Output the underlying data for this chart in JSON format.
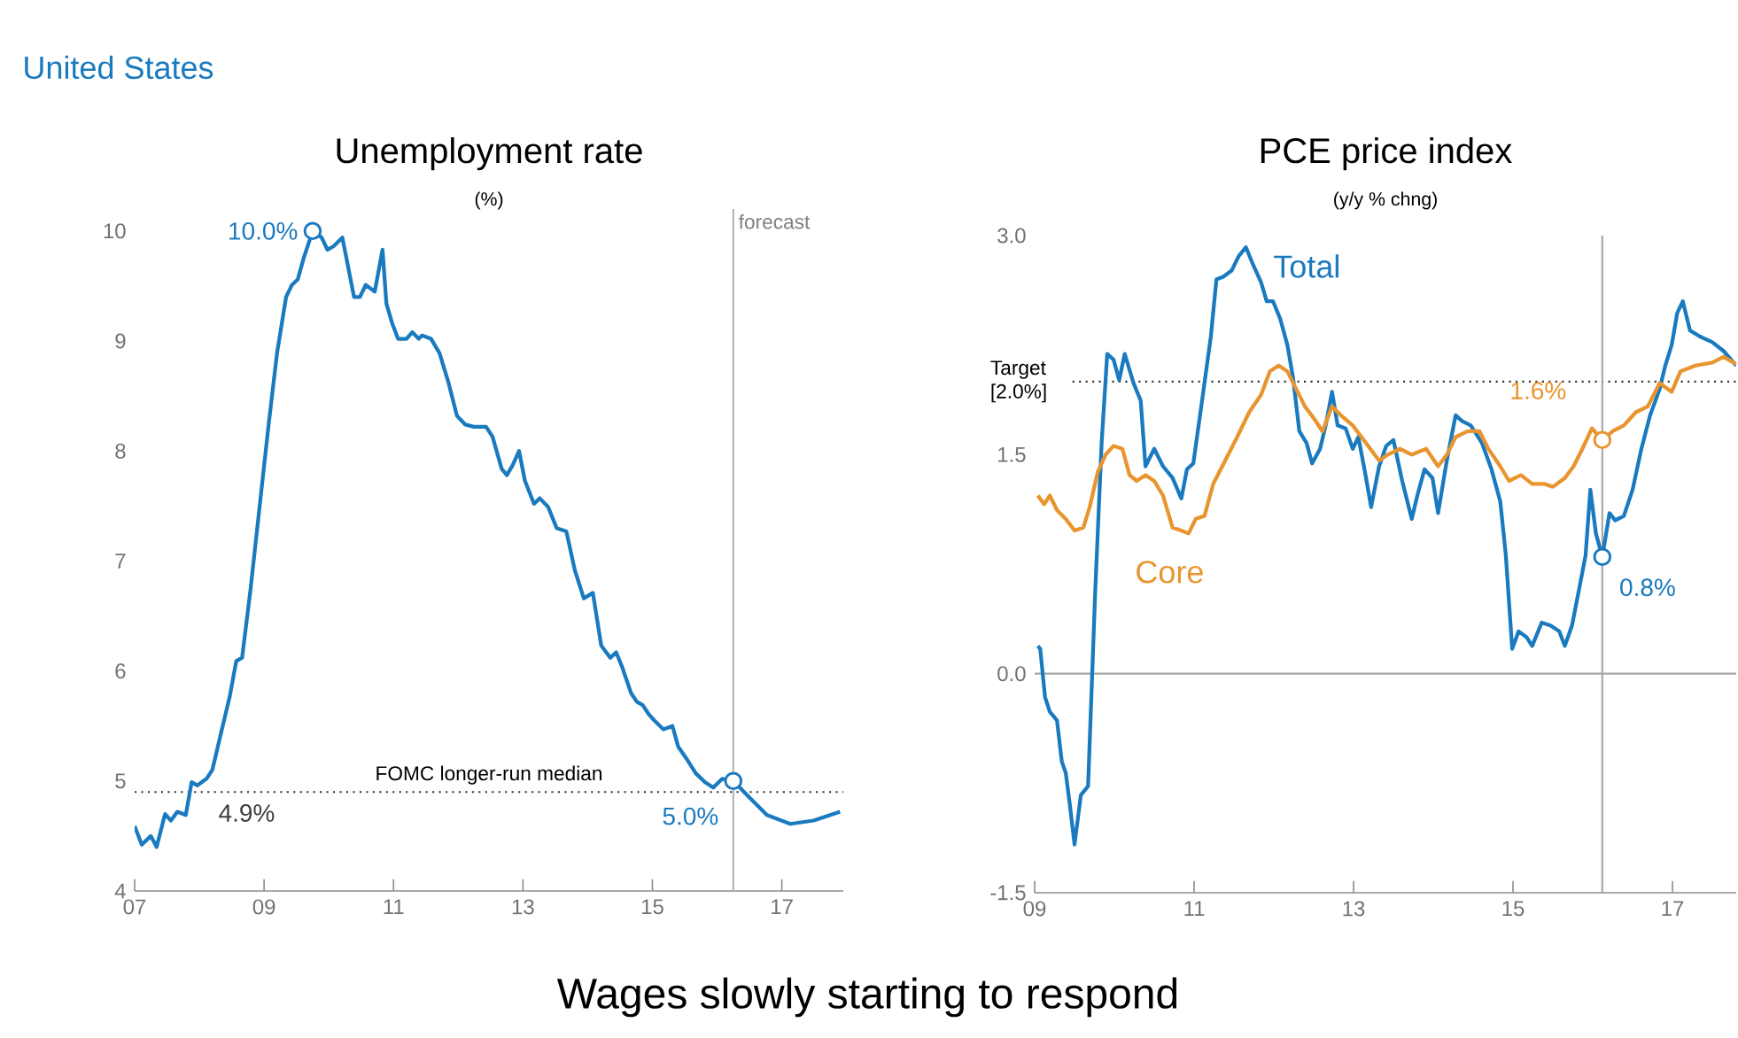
{
  "chart_data": [
    {
      "type": "line",
      "title": "Unemployment rate",
      "subtitle": "(%)",
      "annotations": [
        "United States",
        {
          "text": "10.0%",
          "x": 2009.75,
          "y": 10.0
        },
        {
          "text": "4.9%",
          "x": 2008.25,
          "y": 4.9
        },
        {
          "text": "5.0%",
          "x": 2016.25,
          "y": 5.0
        }
      ],
      "xlim": [
        2007,
        2017.95
      ],
      "xticks": [
        {
          "value": 2007,
          "label": "07"
        },
        {
          "value": 2009,
          "label": "09"
        },
        {
          "value": 2011,
          "label": "11"
        },
        {
          "value": 2013,
          "label": "13"
        },
        {
          "value": 2015,
          "label": "15"
        },
        {
          "value": 2017,
          "label": "17"
        }
      ],
      "ylim": [
        4,
        10.2
      ],
      "yticks": [
        4,
        5,
        6,
        7,
        8,
        9,
        10
      ],
      "ref_lines": [
        {
          "axis": "x",
          "value": 2016.25,
          "label": "forecast",
          "color": "#b3b3b3",
          "line_style": "solid"
        },
        {
          "axis": "y",
          "value": 4.9,
          "label": "FOMC longer-run median",
          "color": "#333333",
          "line_style": "dotted"
        }
      ],
      "series": [
        {
          "color": "#1a7abf",
          "x": [
            2007.0,
            2007.11,
            2007.25,
            2007.34,
            2007.47,
            2007.56,
            2007.66,
            2007.79,
            2007.88,
            2007.97,
            2008.11,
            2008.2,
            2008.34,
            2008.47,
            2008.57,
            2008.66,
            2008.79,
            2008.93,
            2009.07,
            2009.2,
            2009.34,
            2009.43,
            2009.52,
            2009.61,
            2009.75,
            2009.89,
            2009.98,
            2010.07,
            2010.21,
            2010.3,
            2010.39,
            2010.48,
            2010.57,
            2010.71,
            2010.83,
            2010.89,
            2010.98,
            2011.07,
            2011.2,
            2011.29,
            2011.39,
            2011.44,
            2011.58,
            2011.71,
            2011.85,
            2011.98,
            2012.11,
            2012.24,
            2012.43,
            2012.53,
            2012.67,
            2012.75,
            2012.84,
            2012.94,
            2013.03,
            2013.17,
            2013.26,
            2013.39,
            2013.52,
            2013.67,
            2013.8,
            2013.94,
            2014.08,
            2014.21,
            2014.35,
            2014.44,
            2014.53,
            2014.67,
            2014.76,
            2014.85,
            2014.94,
            2015.03,
            2015.17,
            2015.31,
            2015.4,
            2015.53,
            2015.67,
            2015.81,
            2015.94,
            2016.08,
            2016.25,
            2016.5,
            2016.77,
            2017.13,
            2017.49,
            2017.9
          ],
          "values": [
            4.59,
            4.42,
            4.5,
            4.4,
            4.7,
            4.64,
            4.72,
            4.69,
            4.99,
            4.96,
            5.02,
            5.1,
            5.45,
            5.77,
            6.09,
            6.12,
            6.74,
            7.49,
            8.24,
            8.89,
            9.4,
            9.51,
            9.56,
            9.75,
            10.0,
            9.94,
            9.83,
            9.86,
            9.94,
            9.67,
            9.4,
            9.4,
            9.51,
            9.45,
            9.83,
            9.34,
            9.16,
            9.02,
            9.02,
            9.08,
            9.02,
            9.05,
            9.02,
            8.89,
            8.62,
            8.32,
            8.24,
            8.22,
            8.22,
            8.13,
            7.84,
            7.78,
            7.87,
            8.0,
            7.73,
            7.52,
            7.57,
            7.49,
            7.3,
            7.27,
            6.92,
            6.66,
            6.71,
            6.23,
            6.12,
            6.17,
            6.04,
            5.8,
            5.72,
            5.69,
            5.61,
            5.55,
            5.47,
            5.5,
            5.31,
            5.2,
            5.07,
            4.99,
            4.94,
            5.02,
            5.0,
            4.85,
            4.69,
            4.61,
            4.64,
            4.72
          ]
        },
        {
          "type": "scatter",
          "marker": "circle",
          "color": "#1a7abf",
          "x": [
            2009.75,
            2016.25
          ],
          "values": [
            10.0,
            5.0
          ]
        }
      ]
    },
    {
      "type": "line",
      "title": "PCE price index",
      "subtitle": "(y/y % chng)",
      "annotations": [
        "Wages slowly starting to respond",
        {
          "text": "1.6%",
          "x": 2016.12,
          "y": 1.6
        },
        {
          "text": "0.8%",
          "x": 2016.12,
          "y": 0.8
        }
      ],
      "xlim": [
        2009,
        2017.8
      ],
      "xticks": [
        {
          "value": 2009,
          "label": "09"
        },
        {
          "value": 2011,
          "label": "11"
        },
        {
          "value": 2013,
          "label": "13"
        },
        {
          "value": 2015,
          "label": "15"
        },
        {
          "value": 2017,
          "label": "17"
        }
      ],
      "ylim": [
        -1.5,
        3.0
      ],
      "yticks": [
        {
          "value": -1.5,
          "label": "-1.5"
        },
        {
          "value": 0,
          "label": "0.0"
        },
        {
          "value": 1.5,
          "label": "1.5"
        },
        {
          "value": 3.0,
          "label": "3.0"
        }
      ],
      "ref_lines": [
        {
          "axis": "y",
          "value": 2.0,
          "label": "Target [2.0%]",
          "color": "#333333",
          "line_style": "dotted"
        },
        {
          "axis": "y",
          "value": 0,
          "color": "#a6a6a6",
          "line_style": "solid"
        },
        {
          "axis": "x",
          "value": 2016.12,
          "color": "#a6a6a6",
          "line_style": "solid"
        }
      ],
      "series": [
        {
          "name": "Total",
          "color": "#1a7abf",
          "x": [
            2009.04,
            2009.07,
            2009.13,
            2009.19,
            2009.28,
            2009.34,
            2009.39,
            2009.44,
            2009.5,
            2009.58,
            2009.67,
            2009.76,
            2009.84,
            2009.91,
            2009.99,
            2010.06,
            2010.13,
            2010.24,
            2010.33,
            2010.39,
            2010.5,
            2010.61,
            2010.73,
            2010.84,
            2010.91,
            2010.99,
            2011.1,
            2011.21,
            2011.28,
            2011.37,
            2011.47,
            2011.56,
            2011.65,
            2011.74,
            2011.84,
            2011.91,
            2011.99,
            2012.08,
            2012.17,
            2012.24,
            2012.32,
            2012.41,
            2012.48,
            2012.58,
            2012.65,
            2012.73,
            2012.8,
            2012.9,
            2012.99,
            2013.06,
            2013.15,
            2013.22,
            2013.32,
            2013.41,
            2013.5,
            2013.61,
            2013.73,
            2013.8,
            2013.89,
            2013.99,
            2014.06,
            2014.17,
            2014.28,
            2014.36,
            2014.47,
            2014.61,
            2014.73,
            2014.84,
            2014.91,
            2014.99,
            2015.07,
            2015.17,
            2015.24,
            2015.36,
            2015.47,
            2015.58,
            2015.65,
            2015.74,
            2015.84,
            2015.91,
            2015.97,
            2016.04,
            2016.12,
            2016.21,
            2016.28,
            2016.39,
            2016.5,
            2016.61,
            2016.72,
            2016.84,
            2016.91,
            2016.99,
            2017.06,
            2017.13,
            2017.22,
            2017.34,
            2017.5,
            2017.64,
            2017.8
          ],
          "values": [
            0.19,
            0.17,
            -0.16,
            -0.26,
            -0.32,
            -0.6,
            -0.68,
            -0.89,
            -1.17,
            -0.83,
            -0.77,
            0.57,
            1.58,
            2.19,
            2.15,
            2.01,
            2.19,
            1.99,
            1.87,
            1.42,
            1.54,
            1.42,
            1.34,
            1.2,
            1.4,
            1.44,
            1.87,
            2.31,
            2.7,
            2.72,
            2.76,
            2.86,
            2.92,
            2.8,
            2.68,
            2.55,
            2.55,
            2.43,
            2.25,
            2.03,
            1.66,
            1.58,
            1.44,
            1.54,
            1.7,
            1.93,
            1.7,
            1.68,
            1.54,
            1.62,
            1.36,
            1.14,
            1.42,
            1.56,
            1.6,
            1.32,
            1.06,
            1.22,
            1.4,
            1.34,
            1.1,
            1.46,
            1.77,
            1.73,
            1.7,
            1.58,
            1.4,
            1.18,
            0.81,
            0.17,
            0.29,
            0.25,
            0.19,
            0.35,
            0.33,
            0.29,
            0.19,
            0.33,
            0.61,
            0.81,
            1.26,
            0.96,
            0.8,
            1.1,
            1.05,
            1.08,
            1.26,
            1.54,
            1.77,
            1.95,
            2.11,
            2.25,
            2.47,
            2.55,
            2.35,
            2.31,
            2.27,
            2.21,
            2.11
          ]
        },
        {
          "name": "Core",
          "color": "#e8952f",
          "x": [
            2009.04,
            2009.12,
            2009.19,
            2009.28,
            2009.39,
            2009.5,
            2009.61,
            2009.69,
            2009.79,
            2009.89,
            2009.99,
            2010.1,
            2010.19,
            2010.28,
            2010.39,
            2010.5,
            2010.61,
            2010.73,
            2010.84,
            2010.93,
            2011.02,
            2011.13,
            2011.24,
            2011.39,
            2011.54,
            2011.69,
            2011.84,
            2011.95,
            2012.06,
            2012.17,
            2012.28,
            2012.39,
            2012.5,
            2012.61,
            2012.73,
            2012.84,
            2012.99,
            2013.1,
            2013.21,
            2013.32,
            2013.43,
            2013.58,
            2013.73,
            2013.91,
            2014.06,
            2014.17,
            2014.28,
            2014.43,
            2014.58,
            2014.69,
            2014.84,
            2014.95,
            2015.1,
            2015.24,
            2015.39,
            2015.5,
            2015.65,
            2015.76,
            2015.87,
            2015.99,
            2016.12,
            2016.25,
            2016.39,
            2016.54,
            2016.69,
            2016.84,
            2016.99,
            2017.1,
            2017.29,
            2017.5,
            2017.64,
            2017.8
          ],
          "values": [
            1.22,
            1.16,
            1.22,
            1.12,
            1.06,
            0.98,
            1.0,
            1.14,
            1.38,
            1.5,
            1.56,
            1.54,
            1.36,
            1.32,
            1.36,
            1.32,
            1.22,
            1.0,
            0.98,
            0.96,
            1.06,
            1.08,
            1.3,
            1.46,
            1.62,
            1.79,
            1.91,
            2.07,
            2.11,
            2.07,
            1.95,
            1.83,
            1.75,
            1.66,
            1.83,
            1.77,
            1.7,
            1.62,
            1.54,
            1.46,
            1.5,
            1.54,
            1.5,
            1.54,
            1.42,
            1.5,
            1.62,
            1.66,
            1.66,
            1.54,
            1.42,
            1.32,
            1.36,
            1.3,
            1.3,
            1.28,
            1.34,
            1.42,
            1.54,
            1.68,
            1.6,
            1.66,
            1.7,
            1.79,
            1.83,
            1.99,
            1.93,
            2.07,
            2.11,
            2.13,
            2.17,
            2.12
          ]
        },
        {
          "type": "scatter",
          "marker": "circle",
          "color": "#e8952f",
          "x": [
            2016.12
          ],
          "values": [
            1.6
          ]
        },
        {
          "type": "scatter",
          "marker": "circle",
          "color": "#1a7abf",
          "x": [
            2016.12
          ],
          "values": [
            0.8
          ]
        }
      ]
    }
  ]
}
